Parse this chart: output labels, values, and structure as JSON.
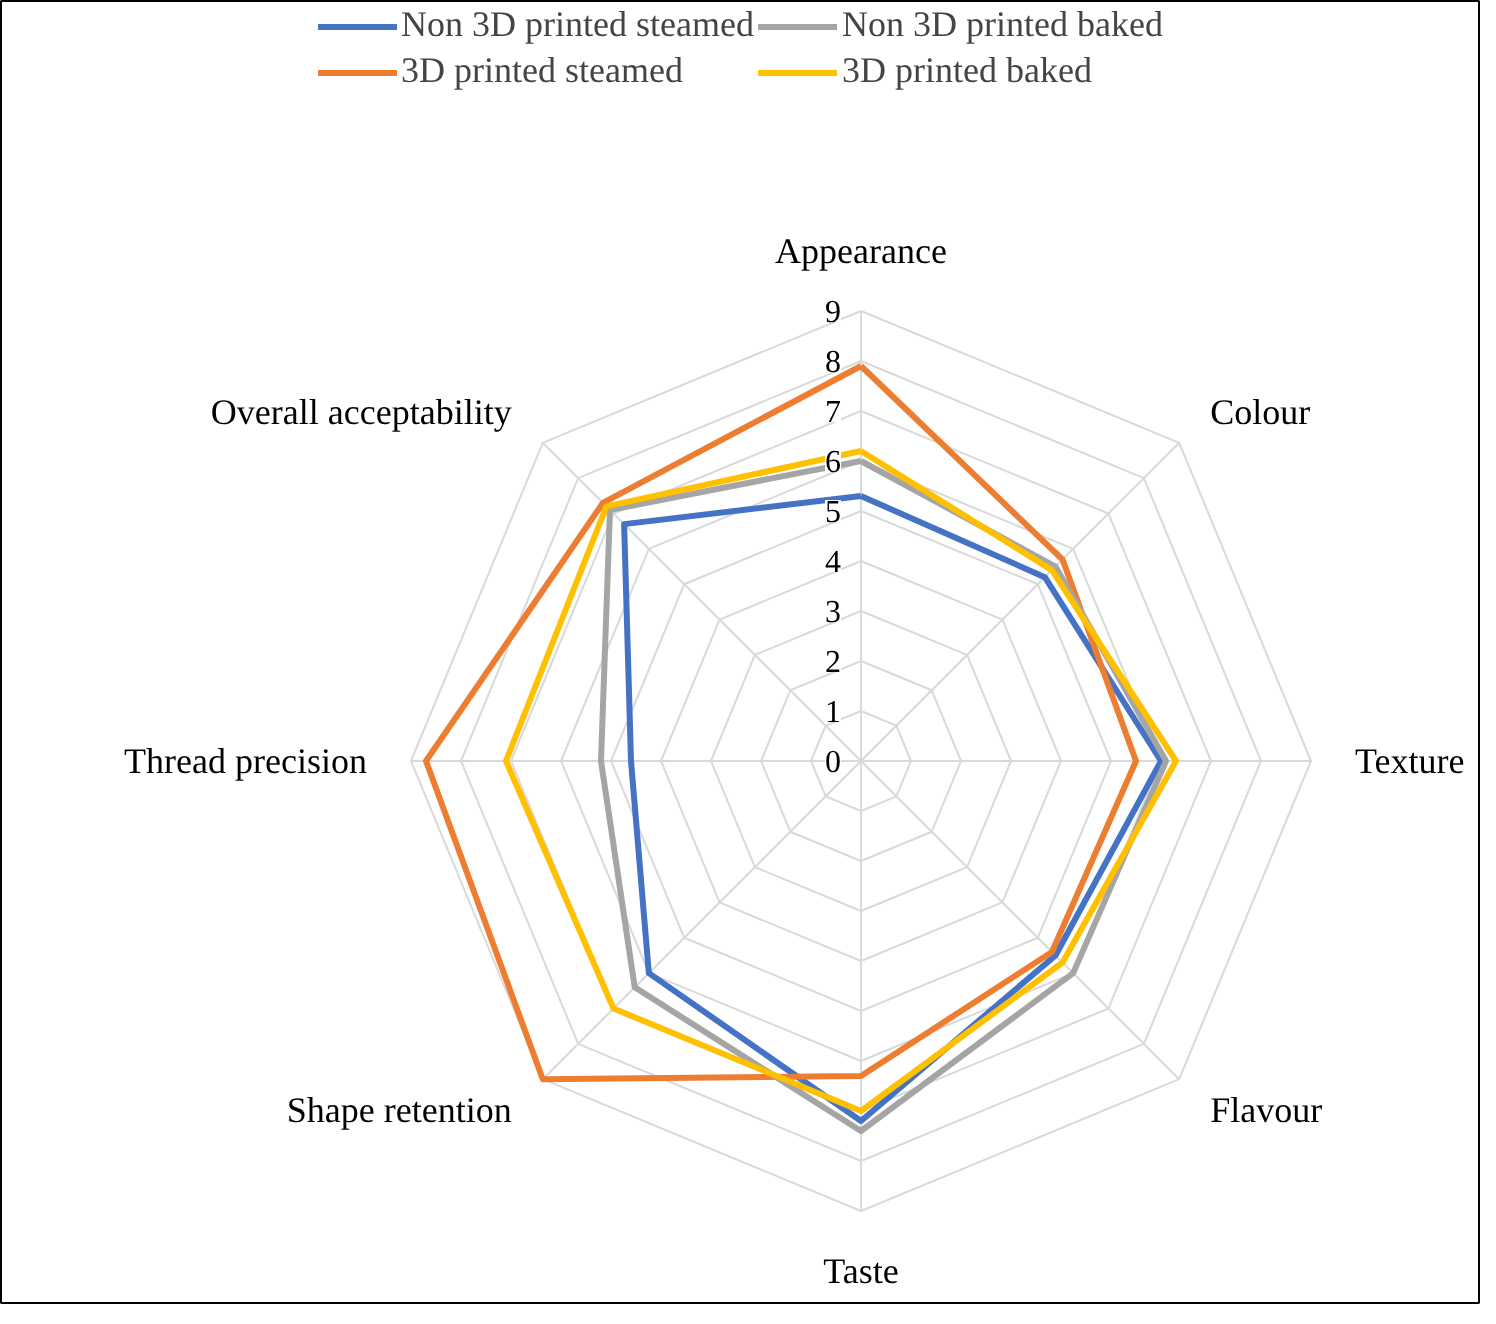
{
  "chart_data": {
    "type": "radar",
    "categories": [
      "Appearance",
      "Colour",
      "Texture",
      "Flavour",
      "Taste",
      "Shape retention",
      "Thread precision",
      "Overall acceptability"
    ],
    "series": [
      {
        "name": "Non 3D printed steamed",
        "color": "#4472c4",
        "values": [
          5.3,
          5.2,
          6.0,
          5.5,
          7.2,
          6.0,
          4.6,
          6.7
        ]
      },
      {
        "name": "3D printed steamed",
        "color": "#ed7d31",
        "values": [
          7.9,
          5.7,
          5.5,
          5.4,
          6.3,
          9.0,
          8.7,
          7.3
        ]
      },
      {
        "name": "Non 3D printed baked",
        "color": "#a5a5a5",
        "values": [
          6.0,
          5.5,
          6.1,
          6.0,
          7.4,
          6.4,
          5.2,
          7.1
        ]
      },
      {
        "name": "3D printed baked",
        "color": "#ffc000",
        "values": [
          6.2,
          5.4,
          6.3,
          5.7,
          7.0,
          7.0,
          7.1,
          7.2
        ]
      }
    ],
    "ylim": [
      0,
      9
    ],
    "yticks": [
      0,
      1,
      2,
      3,
      4,
      5,
      6,
      7,
      8,
      9
    ],
    "grid": true,
    "legend": "top",
    "marker": "none",
    "line_style": "solid"
  }
}
